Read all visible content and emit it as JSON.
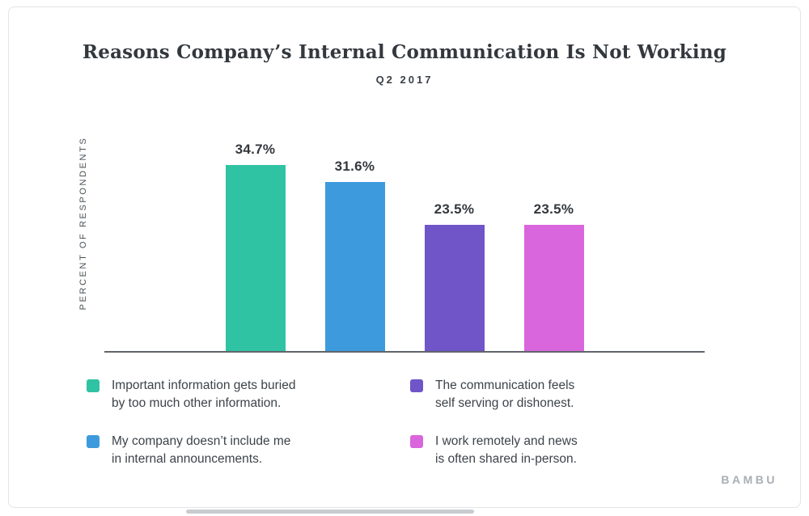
{
  "chart_data": {
    "type": "bar",
    "title": "Reasons Company’s Internal Communication Is Not Working",
    "subtitle": "Q2 2017",
    "ylabel": "PERCENT OF RESPONDENTS",
    "xlabel": "",
    "ylim": [
      0,
      40
    ],
    "grid": false,
    "legend_position": "bottom",
    "categories": [
      "Important information gets buried by too much other information.",
      "My company doesn’t include me in internal announcements.",
      "The communication feels self serving or dishonest.",
      "I work remotely and news is often shared in-person."
    ],
    "values": [
      34.7,
      31.6,
      23.5,
      23.5
    ],
    "value_labels": [
      "34.7%",
      "31.6%",
      "23.5%",
      "23.5%"
    ],
    "colors": [
      "#30c3a3",
      "#3d9bdd",
      "#6f55c8",
      "#d966dc"
    ],
    "legend": [
      {
        "label": "Important information gets buried\nby too much other information.",
        "color": "#30c3a3"
      },
      {
        "label": "My company doesn’t include me\nin internal announcements.",
        "color": "#3d9bdd"
      },
      {
        "label": "The communication feels\nself serving or dishonest.",
        "color": "#6f55c8"
      },
      {
        "label": "I work remotely and news\nis often shared in-person.",
        "color": "#d966dc"
      }
    ]
  },
  "branding": {
    "logo": "BAMBU"
  }
}
